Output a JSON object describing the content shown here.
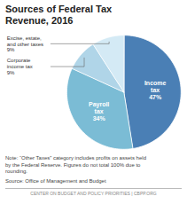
{
  "chart_data": {
    "type": "pie",
    "title": "Sources of Federal Tax\nRevenue, 2016",
    "categories": [
      "Income\ntax",
      "Payroll\ntax",
      "Corporate\nincome tax",
      "Excise, estate,\nand other taxes"
    ],
    "values": [
      47,
      34,
      9,
      9
    ],
    "value_labels": [
      "47%",
      "34%",
      "9%",
      "9%"
    ],
    "data_labels": true,
    "colors": [
      "#4a7fb5",
      "#7bbcd5",
      "#b0d5e8",
      "#d4eaf5"
    ],
    "note": "Note: “Other Taxes” category includes profits on assets held\nby the Federal Reserve. Figures do not total 100% due to\nrounding.",
    "source": "Source: Office of Management and Budget",
    "footer": "CENTER ON BUDGET AND POLICY PRIORITIES  |  CBPP.ORG"
  }
}
